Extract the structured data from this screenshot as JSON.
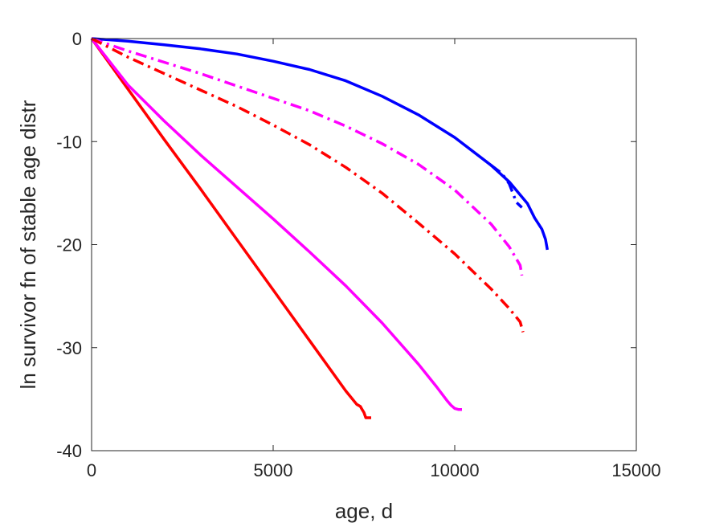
{
  "chart_data": {
    "type": "line",
    "title": "",
    "xlabel": "age, d",
    "ylabel": "ln survivor fn of stable age distr",
    "xlim": [
      0,
      15000
    ],
    "ylim": [
      -40,
      0
    ],
    "xticks": [
      0,
      5000,
      10000,
      15000
    ],
    "yticks": [
      0,
      -10,
      -20,
      -30,
      -40
    ],
    "xtick_labels": [
      "0",
      "5000",
      "10000",
      "15000"
    ],
    "ytick_labels": [
      "0",
      "-10",
      "-20",
      "-30",
      "-40"
    ],
    "grid": false,
    "box": true,
    "legend": "none",
    "series": [
      {
        "color": "#ff0000",
        "style": "solid",
        "x": [
          0,
          1000,
          2000,
          3000,
          4000,
          5000,
          6000,
          7000,
          7300,
          7400,
          7450,
          7500,
          7550,
          7600,
          7700
        ],
        "y": [
          0,
          -4.9,
          -9.8,
          -14.6,
          -19.5,
          -24.4,
          -29.3,
          -34.2,
          -35.5,
          -35.7,
          -36.0,
          -36.3,
          -36.8,
          -36.8,
          -36.8
        ]
      },
      {
        "color": "#ff00ff",
        "style": "solid",
        "x": [
          0,
          1000,
          2000,
          3000,
          4000,
          5000,
          6000,
          7000,
          8000,
          9000,
          9500,
          9800,
          9900,
          10000,
          10100,
          10200
        ],
        "y": [
          0,
          -4.5,
          -8.0,
          -11.3,
          -14.4,
          -17.5,
          -20.7,
          -24.0,
          -27.6,
          -31.6,
          -33.8,
          -35.2,
          -35.6,
          -35.9,
          -36.0,
          -36.0
        ]
      },
      {
        "color": "#0000ff",
        "style": "solid",
        "x": [
          0,
          1000,
          2000,
          3000,
          4000,
          5000,
          6000,
          7000,
          8000,
          9000,
          10000,
          11000,
          11500,
          12000,
          12200,
          12400,
          12500,
          12550
        ],
        "y": [
          0,
          -0.25,
          -0.6,
          -1.0,
          -1.5,
          -2.2,
          -3.0,
          -4.1,
          -5.6,
          -7.4,
          -9.6,
          -12.3,
          -13.9,
          -16.0,
          -17.4,
          -18.5,
          -19.5,
          -20.5
        ]
      },
      {
        "color": "#0000ff",
        "style": "dash-dot",
        "x": [
          11000,
          11300,
          11500,
          11700,
          11850
        ],
        "y": [
          -12.3,
          -13.1,
          -14.1,
          -15.9,
          -16.4
        ]
      },
      {
        "color": "#ff00ff",
        "style": "dash-dot",
        "x": [
          0,
          1000,
          2000,
          3000,
          4000,
          5000,
          6000,
          7000,
          8000,
          9000,
          10000,
          11000,
          11500,
          11800,
          11850
        ],
        "y": [
          0,
          -1.2,
          -2.3,
          -3.4,
          -4.6,
          -5.8,
          -7.0,
          -8.5,
          -10.2,
          -12.2,
          -14.7,
          -18.0,
          -20.2,
          -22.0,
          -23.0
        ]
      },
      {
        "color": "#ff0000",
        "style": "dash-dot",
        "x": [
          0,
          1000,
          2000,
          3000,
          4000,
          5000,
          6000,
          7000,
          8000,
          9000,
          10000,
          11000,
          11500,
          11800,
          11880
        ],
        "y": [
          0,
          -1.8,
          -3.4,
          -5.0,
          -6.6,
          -8.4,
          -10.3,
          -12.5,
          -15.0,
          -17.9,
          -20.9,
          -24.3,
          -26.2,
          -27.5,
          -28.5
        ]
      }
    ]
  }
}
